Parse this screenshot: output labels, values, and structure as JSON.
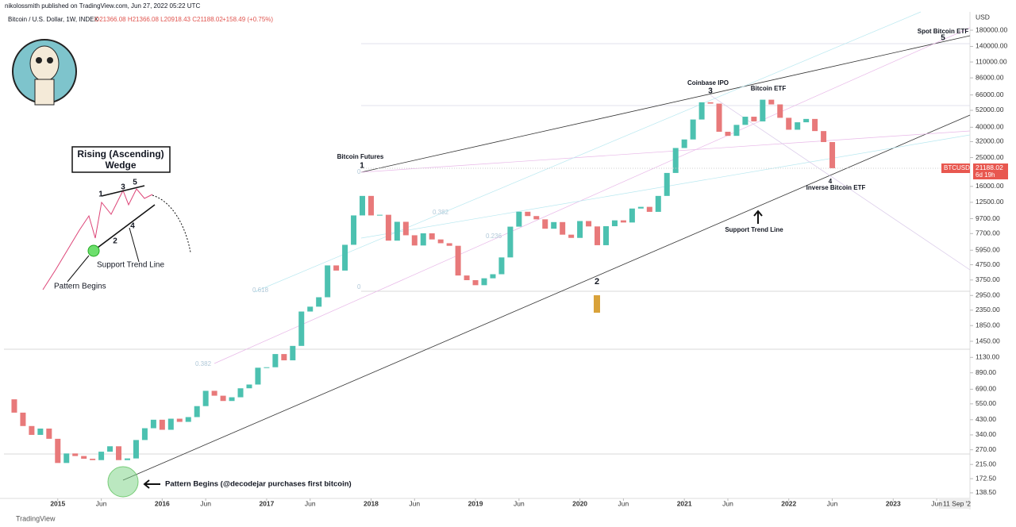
{
  "header": {
    "author": "nikolossmith published on TradingView.com, Jun 27, 2022 05:22 UTC",
    "symbol_line": "Bitcoin / U.S. Dollar, 1W, INDEX",
    "ohlc": "O21366.08 H21366.08 L20918.43 C21188.02",
    "change": "+158.49 (+0.75%)"
  },
  "footer": "TradingView",
  "chart_data": {
    "type": "candlestick",
    "log_scale": true,
    "axis_unit": "USD",
    "up_color": "#4cc1b0",
    "down_color": "#e8797a",
    "x": [
      "2014-07",
      "2014-08",
      "2014-09",
      "2014-10",
      "2014-11",
      "2014-12",
      "2015-01",
      "2015-02",
      "2015-03",
      "2015-04",
      "2015-05",
      "2015-06",
      "2015-07",
      "2015-08",
      "2015-09",
      "2015-10",
      "2015-11",
      "2015-12",
      "2016-01",
      "2016-02",
      "2016-03",
      "2016-04",
      "2016-05",
      "2016-06",
      "2016-07",
      "2016-08",
      "2016-09",
      "2016-10",
      "2016-11",
      "2016-12",
      "2017-01",
      "2017-02",
      "2017-03",
      "2017-04",
      "2017-05",
      "2017-06",
      "2017-07",
      "2017-08",
      "2017-09",
      "2017-10",
      "2017-11",
      "2017-12",
      "2018-01",
      "2018-02",
      "2018-03",
      "2018-04",
      "2018-05",
      "2018-06",
      "2018-07",
      "2018-08",
      "2018-09",
      "2018-10",
      "2018-11",
      "2018-12",
      "2019-01",
      "2019-02",
      "2019-03",
      "2019-04",
      "2019-05",
      "2019-06",
      "2019-07",
      "2019-08",
      "2019-09",
      "2019-10",
      "2019-11",
      "2019-12",
      "2020-01",
      "2020-02",
      "2020-03",
      "2020-04",
      "2020-05",
      "2020-06",
      "2020-07",
      "2020-08",
      "2020-09",
      "2020-10",
      "2020-11",
      "2020-12",
      "2021-01",
      "2021-02",
      "2021-03",
      "2021-04",
      "2021-05",
      "2021-06",
      "2021-07",
      "2021-08",
      "2021-09",
      "2021-10",
      "2021-11",
      "2021-12",
      "2022-01",
      "2022-02",
      "2022-03",
      "2022-04",
      "2022-05",
      "2022-06"
    ],
    "series": [
      {
        "name": "BTCUSD",
        "values": [
          590,
          480,
          390,
          340,
          375,
          320,
          220,
          255,
          245,
          235,
          230,
          262,
          285,
          230,
          236,
          314,
          377,
          430,
          368,
          437,
          416,
          448,
          531,
          673,
          624,
          575,
          609,
          700,
          742,
          963,
          970,
          1190,
          1080,
          1350,
          2300,
          2480,
          2870,
          4700,
          4340,
          6470,
          10200,
          13800,
          10200,
          10300,
          6900,
          9240,
          7500,
          6400,
          7730,
          7030,
          6630,
          6370,
          4020,
          3740,
          3460,
          3850,
          4100,
          5320,
          8570,
          10800,
          10100,
          9600,
          8300,
          9200,
          7570,
          7200,
          9350,
          8600,
          6430,
          8630,
          9450,
          9140,
          11350,
          11650,
          10780,
          13800,
          19700,
          29000,
          33100,
          45100,
          58900,
          57700,
          37300,
          35000,
          41500,
          47100,
          43800,
          61300,
          57000,
          46300,
          38500,
          43200,
          45500,
          37700,
          31800,
          21188.02
        ]
      }
    ],
    "xlim": [
      "2014-07",
      "2023-09"
    ],
    "xticks": [
      {
        "value": "2015-01",
        "label": "2015"
      },
      {
        "value": "2015-06",
        "label": "Jun"
      },
      {
        "value": "2016-01",
        "label": "2016"
      },
      {
        "value": "2016-06",
        "label": "Jun"
      },
      {
        "value": "2017-01",
        "label": "2017"
      },
      {
        "value": "2017-06",
        "label": "Jun"
      },
      {
        "value": "2018-01",
        "label": "2018"
      },
      {
        "value": "2018-06",
        "label": "Jun"
      },
      {
        "value": "2019-01",
        "label": "2019"
      },
      {
        "value": "2019-06",
        "label": "Jun"
      },
      {
        "value": "2020-01",
        "label": "2020"
      },
      {
        "value": "2020-06",
        "label": "Jun"
      },
      {
        "value": "2021-01",
        "label": "2021"
      },
      {
        "value": "2021-06",
        "label": "Jun"
      },
      {
        "value": "2022-01",
        "label": "2022"
      },
      {
        "value": "2022-06",
        "label": "Jun"
      },
      {
        "value": "2023-01",
        "label": "2023"
      },
      {
        "value": "2023-06",
        "label": "Jun"
      }
    ],
    "crosshair_date": "11 Sep '2",
    "ylim": [
      127,
      239000
    ],
    "yticks": [
      {
        "value": 180000,
        "label": "180000.00"
      },
      {
        "value": 140000,
        "label": "140000.00"
      },
      {
        "value": 110000,
        "label": "110000.00"
      },
      {
        "value": 86000,
        "label": "86000.00"
      },
      {
        "value": 66000,
        "label": "66000.00"
      },
      {
        "value": 52000,
        "label": "52000.00"
      },
      {
        "value": 40000,
        "label": "40000.00"
      },
      {
        "value": 32000,
        "label": "32000.00"
      },
      {
        "value": 25000,
        "label": "25000.00"
      },
      {
        "value": 16000,
        "label": "16000.00"
      },
      {
        "value": 12500,
        "label": "12500.00"
      },
      {
        "value": 9700,
        "label": "9700.00"
      },
      {
        "value": 7700,
        "label": "7700.00"
      },
      {
        "value": 5950,
        "label": "5950.00"
      },
      {
        "value": 4750,
        "label": "4750.00"
      },
      {
        "value": 3750,
        "label": "3750.00"
      },
      {
        "value": 2950,
        "label": "2950.00"
      },
      {
        "value": 2350,
        "label": "2350.00"
      },
      {
        "value": 1850,
        "label": "1850.00"
      },
      {
        "value": 1450,
        "label": "1450.00"
      },
      {
        "value": 1130,
        "label": "1130.00"
      },
      {
        "value": 890,
        "label": "890.00"
      },
      {
        "value": 690,
        "label": "690.00"
      },
      {
        "value": 550,
        "label": "550.00"
      },
      {
        "value": 430,
        "label": "430.00"
      },
      {
        "value": 340,
        "label": "340.00"
      },
      {
        "value": 270,
        "label": "270.00"
      },
      {
        "value": 215,
        "label": "215.00"
      },
      {
        "value": 172.5,
        "label": "172.50"
      },
      {
        "value": 138.5,
        "label": "138.50"
      }
    ],
    "last_price": {
      "symbol": "BTCUSD",
      "value": 21188.02,
      "label": "21188.02",
      "countdown": "6d 19h"
    },
    "annotations": [
      "Rising (Ascending)",
      "Wedge",
      "1",
      "3",
      "5",
      "2",
      "4",
      "Support Trend Line",
      "Pattern Begins",
      "Bitcoin Futures",
      "1",
      "Coinbase IPO",
      "3",
      "Bitcoin ETF",
      "Spot Bitcoin ETF",
      "5",
      "2",
      "4",
      "Inverse Bitcoin ETF",
      "Support Trend Line",
      "Pattern Begins (@decodejar purchases first bitcoin)"
    ],
    "fib_labels": [
      "0.382",
      "0.236",
      "0.618",
      "0",
      "0",
      "0.382"
    ]
  }
}
